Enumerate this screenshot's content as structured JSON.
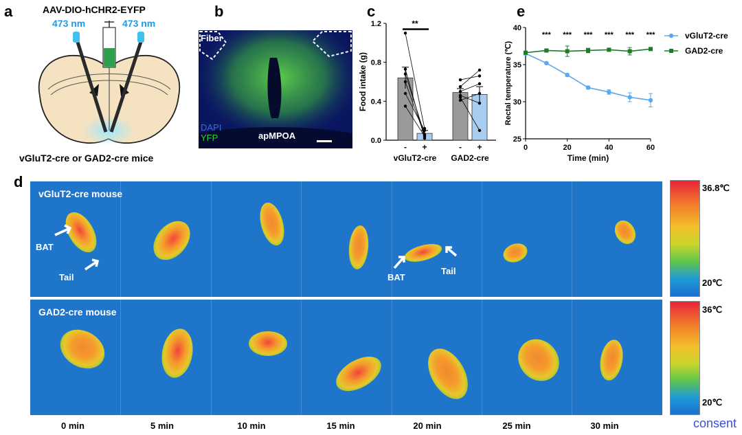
{
  "panel_a": {
    "letter": "a",
    "virus": "AAV-DIO-hCHR2-EYFP",
    "wavelength_left": "473 nm",
    "wavelength_right": "473 nm",
    "mice": "vGluT2-cre or GAD2-cre mice"
  },
  "panel_b": {
    "letter": "b",
    "fiber": "Fiber",
    "dapi": "DAPI",
    "yfp": "YFP",
    "region": "apMPOA"
  },
  "panel_c": {
    "letter": "c",
    "ylabel": "Food intake (g)",
    "significance": "**",
    "group1": "vGluT2-cre",
    "group2": "GAD2-cre",
    "minus": "-",
    "plus": "+"
  },
  "panel_e": {
    "letter": "e",
    "ylabel": "Rectal temperature (℃)",
    "xlabel": "Time (min)",
    "legend_vglut2": "vGluT2-cre",
    "legend_gad2": "GAD2-cre",
    "stars": "***"
  },
  "panel_d": {
    "letter": "d",
    "top_title": "vGluT2-cre mouse",
    "bottom_title": "GAD2-cre mouse",
    "bat": "BAT",
    "tail": "Tail",
    "top_max": "36.8℃",
    "top_min": "20℃",
    "bottom_max": "36℃",
    "bottom_min": "20℃",
    "times": [
      "0 min",
      "5 min",
      "10 min",
      "15 min",
      "20 min",
      "25 min",
      "30 min"
    ]
  },
  "consent": "consent",
  "colors": {
    "vglut2": "#5aa8ef",
    "gad2": "#1f7a2a",
    "bar_gray": "#9a9a9a",
    "bar_blue": "#a8cdf0",
    "thermal_bg": "#1f75c9"
  },
  "chart_data": [
    {
      "type": "bar",
      "ylabel": "Food intake (g)",
      "ylim": [
        0,
        1.2
      ],
      "yticks": [
        "0.0",
        "0.4",
        "0.8",
        "1.2"
      ],
      "categories": [
        "vGluT2-cre -",
        "vGluT2-cre +",
        "GAD2-cre -",
        "GAD2-cre +"
      ],
      "values": [
        0.64,
        0.07,
        0.49,
        0.47
      ],
      "errors": [
        0.11,
        0.03,
        0.04,
        0.08
      ],
      "points_pairs": [
        [
          [
            1.1,
            0.12
          ],
          [
            0.68,
            0.06
          ],
          [
            0.73,
            0.02
          ],
          [
            0.6,
            0.05
          ],
          [
            0.48,
            0.1
          ],
          [
            0.35,
            0.04
          ]
        ],
        [
          [
            0.62,
            0.66
          ],
          [
            0.55,
            0.72
          ],
          [
            0.5,
            0.58
          ],
          [
            0.46,
            0.38
          ],
          [
            0.44,
            0.1
          ],
          [
            0.41,
            0.48
          ]
        ]
      ]
    },
    {
      "type": "line",
      "xlabel": "Time (min)",
      "ylabel": "Rectal temperature (℃)",
      "xlim": [
        0,
        60
      ],
      "ylim": [
        25,
        40
      ],
      "x": [
        0,
        10,
        20,
        30,
        40,
        50,
        60
      ],
      "xticks": [
        "0",
        "20",
        "40",
        "60"
      ],
      "yticks": [
        "25",
        "30",
        "35",
        "40"
      ],
      "series": [
        {
          "name": "vGluT2-cre",
          "values": [
            36.5,
            35.2,
            33.6,
            31.9,
            31.3,
            30.6,
            30.2
          ],
          "errors": [
            0.2,
            0.15,
            0.2,
            0.2,
            0.3,
            0.6,
            0.9
          ]
        },
        {
          "name": "GAD2-cre",
          "values": [
            36.6,
            36.9,
            36.8,
            36.9,
            37.0,
            36.8,
            37.1
          ],
          "errors": [
            0.2,
            0.2,
            0.7,
            0.3,
            0.2,
            0.5,
            0.2
          ]
        }
      ],
      "significance_x": [
        10,
        20,
        30,
        40,
        50,
        60
      ]
    }
  ]
}
